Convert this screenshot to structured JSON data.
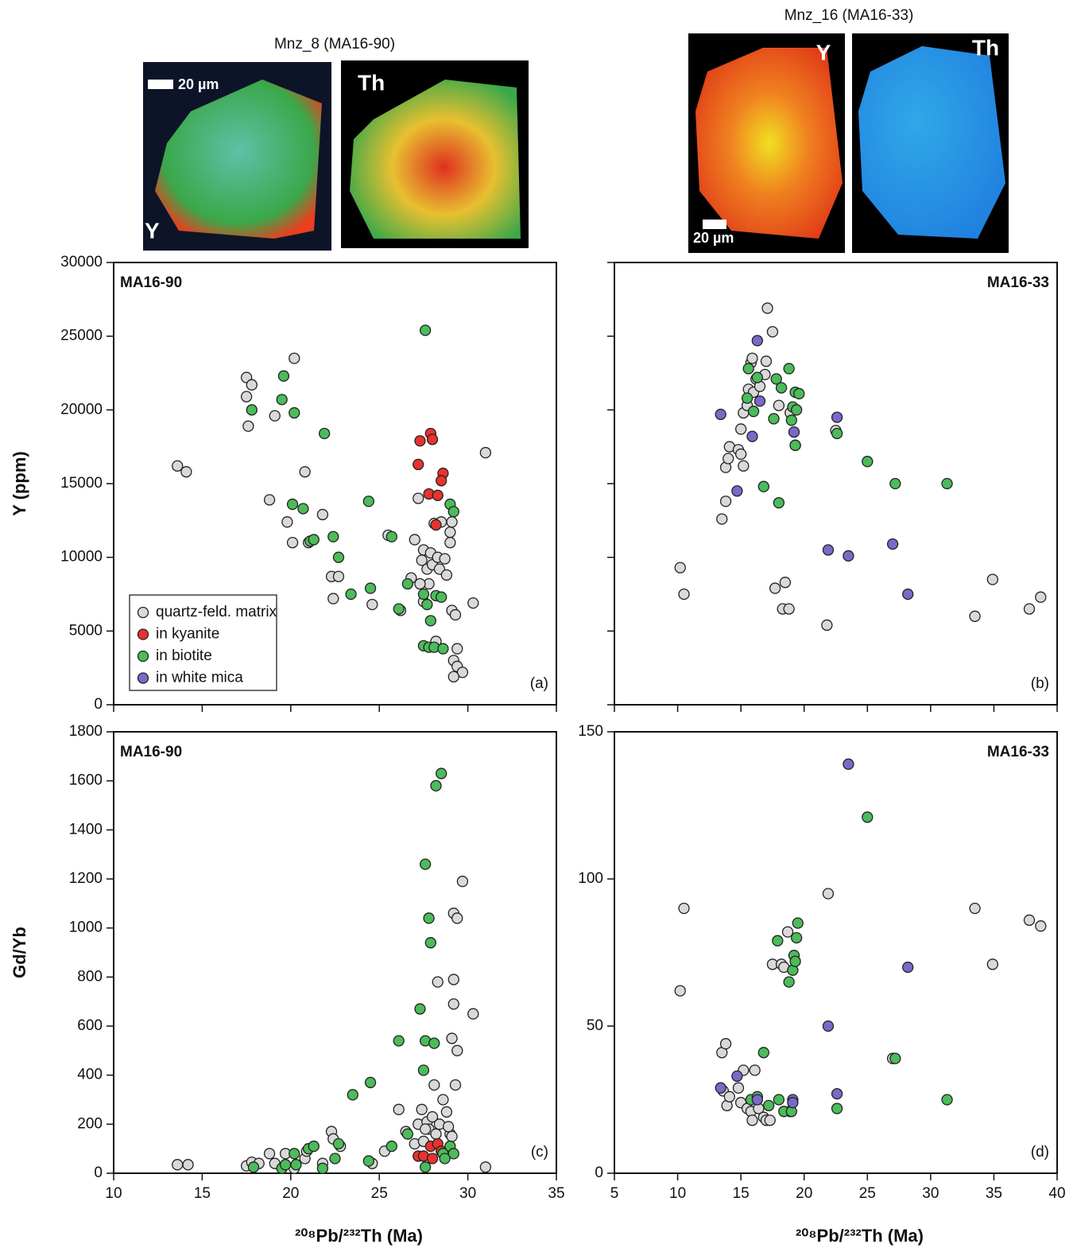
{
  "images": [
    {
      "title": "Mnz_8 (MA16-90)",
      "panels": [
        {
          "label": "Y"
        },
        {
          "label": "Th"
        }
      ],
      "scale_bar": "20 µm"
    },
    {
      "title": "Mnz_16 (MA16-33)",
      "panels": [
        {
          "label": "Y"
        },
        {
          "label": "Th"
        }
      ],
      "scale_bar": "20 µm"
    }
  ],
  "chart_data": [
    {
      "type": "scatter",
      "title": "MA16-90",
      "label": "(a)",
      "ylabel": "Y (ppm)",
      "xlim": [
        10,
        35
      ],
      "xticks": [
        10,
        15,
        20,
        25,
        30,
        35
      ],
      "show_xtick_labels": false,
      "ylim": [
        0,
        30000
      ],
      "yticks": [
        0,
        5000,
        10000,
        15000,
        20000,
        25000,
        30000
      ],
      "show_ytick_labels": true,
      "legend": "lower left",
      "series": [
        {
          "name": "quartz-feld. matrix",
          "color": "#d9d9d9",
          "x": [
            13.6,
            14.1,
            17.5,
            17.8,
            17.5,
            17.6,
            19.1,
            20.2,
            18.8,
            19.8,
            20.1,
            20.8,
            21.0,
            21.8,
            22.3,
            22.7,
            22.4,
            24.6,
            25.5,
            26.2,
            26.8,
            27.0,
            27.2,
            27.4,
            27.5,
            27.7,
            27.8,
            27.9,
            28.0,
            28.1,
            28.3,
            28.4,
            28.5,
            28.7,
            28.8,
            29.0,
            29.0,
            29.1,
            29.3,
            29.4,
            29.2,
            29.4,
            29.7,
            29.2,
            30.3,
            31.0,
            29.1,
            28.2,
            27.3,
            27.5
          ],
          "y": [
            16200,
            15800,
            22200,
            21700,
            20900,
            18900,
            19600,
            23500,
            13900,
            12400,
            11000,
            15800,
            11000,
            12900,
            8700,
            8700,
            7200,
            6800,
            11500,
            6400,
            8600,
            11200,
            14000,
            9800,
            10500,
            9200,
            8200,
            10300,
            9500,
            12300,
            10000,
            9200,
            12400,
            9900,
            8800,
            11700,
            11000,
            6400,
            6100,
            3800,
            3000,
            2600,
            2200,
            1900,
            6900,
            17100,
            12400,
            4300,
            8200,
            7000
          ]
        },
        {
          "name": "in kyanite",
          "color": "#e8322e",
          "x": [
            27.3,
            27.9,
            28.0,
            27.2,
            27.8,
            28.3,
            28.6,
            28.5,
            28.2
          ],
          "y": [
            17900,
            18400,
            18000,
            16300,
            14300,
            14200,
            15700,
            15200,
            12200
          ]
        },
        {
          "name": "in biotite",
          "color": "#4cbb5a",
          "x": [
            17.8,
            19.6,
            19.5,
            20.2,
            21.9,
            20.1,
            20.7,
            21.1,
            21.3,
            22.4,
            22.7,
            23.4,
            24.4,
            24.5,
            25.7,
            26.1,
            26.6,
            27.6,
            27.5,
            27.7,
            27.9,
            28.2,
            27.5,
            27.8,
            28.1,
            28.6,
            29.0,
            29.2,
            28.5
          ],
          "y": [
            20000,
            22300,
            20700,
            19800,
            18400,
            13600,
            13300,
            11100,
            11200,
            11400,
            10000,
            7500,
            13800,
            7900,
            11400,
            6500,
            8200,
            25400,
            7500,
            6800,
            5700,
            7400,
            4000,
            3900,
            3900,
            3800,
            13600,
            13100,
            7300
          ]
        },
        {
          "name": "in white mica",
          "color": "#7b68c8",
          "x": [],
          "y": []
        }
      ]
    },
    {
      "type": "scatter",
      "title": "MA16-33",
      "label": "(b)",
      "xlim": [
        5,
        40
      ],
      "xticks": [
        5,
        10,
        15,
        20,
        25,
        30,
        35,
        40
      ],
      "show_xtick_labels": false,
      "ylim": [
        0,
        30000
      ],
      "yticks": [
        0,
        5000,
        10000,
        15000,
        20000,
        25000,
        30000
      ],
      "show_ytick_labels": false,
      "series": [
        {
          "color": "#d9d9d9",
          "x": [
            10.2,
            10.5,
            13.5,
            13.8,
            13.8,
            14.0,
            14.1,
            14.8,
            15.0,
            15.2,
            15.0,
            15.2,
            15.5,
            15.6,
            15.8,
            15.9,
            16.0,
            16.2,
            16.5,
            16.9,
            17.0,
            17.1,
            17.5,
            18.0,
            17.7,
            18.5,
            18.3,
            18.8,
            18.9,
            19.3,
            21.8,
            22.5,
            33.5,
            34.9,
            37.8,
            38.7
          ],
          "y": [
            9300,
            7500,
            12600,
            13800,
            16100,
            16700,
            17500,
            17300,
            17000,
            16200,
            18700,
            19800,
            20300,
            21400,
            23200,
            23500,
            21200,
            22100,
            21600,
            22400,
            23300,
            26900,
            25300,
            20300,
            7900,
            8300,
            6500,
            6500,
            19800,
            17600,
            5400,
            18600,
            6000,
            8500,
            6500,
            7300
          ]
        },
        {
          "color": "#4cbb5a",
          "x": [
            15.6,
            15.5,
            16.0,
            16.3,
            16.8,
            17.6,
            17.8,
            18.2,
            18.0,
            18.8,
            19.0,
            19.1,
            19.3,
            19.4,
            19.3,
            22.6,
            25.0,
            27.2,
            31.3,
            19.6
          ],
          "y": [
            22800,
            20800,
            19900,
            22200,
            14800,
            19400,
            22100,
            21500,
            13700,
            22800,
            19300,
            20200,
            21200,
            20000,
            17600,
            18400,
            16500,
            15000,
            15000,
            21100
          ]
        },
        {
          "color": "#7b68c8",
          "x": [
            13.4,
            14.7,
            15.9,
            16.3,
            16.5,
            19.2,
            22.6,
            21.9,
            23.5,
            27.0,
            28.2
          ],
          "y": [
            19700,
            14500,
            18200,
            24700,
            20600,
            18500,
            19500,
            10500,
            10100,
            10900,
            7500
          ]
        }
      ]
    },
    {
      "type": "scatter",
      "title": "MA16-90",
      "label": "(c)",
      "ylabel": "Gd/Yb",
      "xlabel": "²⁰⁸Pb/²³²Th   (Ma)",
      "xlim": [
        10,
        35
      ],
      "xticks": [
        10,
        15,
        20,
        25,
        30,
        35
      ],
      "show_xtick_labels": true,
      "ylim": [
        0,
        1800
      ],
      "yticks": [
        0,
        200,
        400,
        600,
        800,
        1000,
        1200,
        1400,
        1600,
        1800
      ],
      "show_ytick_labels": true,
      "series": [
        {
          "color": "#d9d9d9",
          "x": [
            13.6,
            14.2,
            17.5,
            17.8,
            18.2,
            18.8,
            19.1,
            19.7,
            20.2,
            20.8,
            20.9,
            21.8,
            22.3,
            22.4,
            22.8,
            24.6,
            25.3,
            26.1,
            26.5,
            27.0,
            27.2,
            27.4,
            27.5,
            27.7,
            27.8,
            28.0,
            28.2,
            28.4,
            28.1,
            28.3,
            28.6,
            28.8,
            29.0,
            29.1,
            29.1,
            29.2,
            29.2,
            29.2,
            29.3,
            29.4,
            29.4,
            29.7,
            30.3,
            31.0,
            27.6,
            28.9
          ],
          "y": [
            35,
            35,
            30,
            45,
            40,
            80,
            40,
            80,
            20,
            60,
            90,
            40,
            170,
            140,
            110,
            40,
            90,
            260,
            170,
            120,
            200,
            260,
            130,
            210,
            180,
            230,
            160,
            200,
            360,
            780,
            300,
            250,
            160,
            150,
            550,
            690,
            790,
            1060,
            360,
            1040,
            500,
            1190,
            650,
            25,
            180,
            190
          ]
        },
        {
          "color": "#e8322e",
          "x": [
            27.2,
            27.5,
            27.9,
            28.0,
            28.3,
            28.5,
            28.7
          ],
          "y": [
            70,
            70,
            110,
            60,
            120,
            90,
            70
          ]
        },
        {
          "color": "#4cbb5a",
          "x": [
            17.9,
            19.5,
            19.7,
            20.2,
            20.3,
            21.0,
            21.3,
            21.8,
            22.5,
            22.7,
            23.5,
            24.4,
            24.5,
            25.7,
            26.1,
            26.6,
            27.3,
            27.5,
            27.6,
            27.6,
            27.8,
            27.9,
            28.1,
            28.2,
            28.5,
            27.6,
            28.6,
            29.0,
            29.2,
            28.7
          ],
          "y": [
            25,
            20,
            35,
            80,
            35,
            100,
            110,
            20,
            60,
            120,
            320,
            50,
            370,
            110,
            540,
            160,
            670,
            420,
            1260,
            540,
            1040,
            940,
            530,
            1580,
            1630,
            25,
            80,
            110,
            80,
            60
          ]
        }
      ]
    },
    {
      "type": "scatter",
      "title": "MA16-33",
      "label": "(d)",
      "xlabel": "²⁰⁸Pb/²³²Th   (Ma)",
      "xlim": [
        5,
        40
      ],
      "xticks": [
        5,
        10,
        15,
        20,
        25,
        30,
        35,
        40
      ],
      "show_xtick_labels": true,
      "ylim": [
        0,
        150
      ],
      "yticks": [
        0,
        50,
        100,
        150
      ],
      "show_ytick_labels": true,
      "series": [
        {
          "color": "#d9d9d9",
          "x": [
            10.2,
            10.5,
            13.5,
            13.8,
            13.6,
            13.9,
            14.1,
            14.8,
            15.0,
            15.2,
            15.5,
            15.8,
            15.9,
            16.1,
            16.4,
            16.8,
            17.0,
            17.3,
            17.5,
            18.2,
            18.4,
            18.7,
            18.9,
            21.9,
            27.0,
            33.5,
            34.9,
            37.8,
            38.7
          ],
          "y": [
            62,
            90,
            41,
            44,
            28,
            23,
            26,
            29,
            24,
            35,
            22,
            21,
            18,
            35,
            22,
            19,
            18,
            18,
            71,
            71,
            70,
            82,
            21,
            95,
            39,
            90,
            71,
            86,
            84
          ]
        },
        {
          "color": "#4cbb5a",
          "x": [
            15.8,
            16.3,
            16.8,
            17.2,
            17.9,
            18.0,
            18.4,
            18.8,
            19.1,
            19.2,
            19.3,
            19.4,
            19.5,
            19.0,
            22.6,
            25.0,
            27.2,
            31.3
          ],
          "y": [
            25,
            26,
            41,
            23,
            79,
            25,
            21,
            65,
            69,
            74,
            72,
            80,
            85,
            21,
            22,
            121,
            39,
            25
          ]
        },
        {
          "color": "#7b68c8",
          "x": [
            13.4,
            14.7,
            16.3,
            19.1,
            19.1,
            21.9,
            22.6,
            23.5,
            28.2
          ],
          "y": [
            29,
            33,
            25,
            25,
            24,
            50,
            27,
            139,
            70
          ]
        }
      ]
    }
  ]
}
